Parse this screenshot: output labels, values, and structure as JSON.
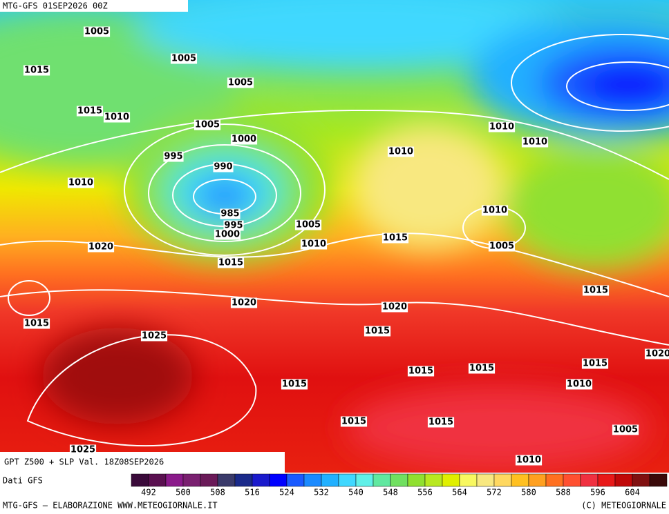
{
  "header": {
    "run": "MTG-GFS 01SEP2026 00Z"
  },
  "map": {
    "title": "GPT Z500 + SLP Val. 18Z08SEP2026",
    "isobar_labels": [
      "1005",
      "1005",
      "1015",
      "1005",
      "1015",
      "1010",
      "1005",
      "1000",
      "995",
      "990",
      "1010",
      "985",
      "995",
      "1000",
      "1005",
      "1010",
      "1010",
      "1010",
      "1010",
      "1010",
      "1005",
      "1015",
      "1020",
      "1015",
      "1020",
      "1015",
      "1015",
      "1020",
      "1015",
      "1025",
      "1015",
      "1015",
      "1015",
      "1020",
      "1010",
      "1015",
      "1015",
      "1015",
      "1005",
      "1010",
      "1025"
    ]
  },
  "legend": {
    "source": "Dati GFS",
    "colors": [
      "#3a0a3a",
      "#5a1050",
      "#8a1a8a",
      "#7a2070",
      "#6a1a58",
      "#3a3a6a",
      "#1a2a8a",
      "#1a1acc",
      "#0000ff",
      "#1a5aff",
      "#1a8aff",
      "#20b0ff",
      "#40d8ff",
      "#60f0e8",
      "#60e8a0",
      "#70e060",
      "#90e030",
      "#b8e820",
      "#e0f000",
      "#f8f860",
      "#f8e880",
      "#ffd860",
      "#ffc020",
      "#ffa020",
      "#ff7020",
      "#ff5030",
      "#f03040",
      "#e81818",
      "#c00808",
      "#801010",
      "#3a0a0a"
    ],
    "ticks": [
      492,
      500,
      508,
      516,
      524,
      532,
      540,
      548,
      556,
      564,
      572,
      580,
      588,
      596,
      604
    ]
  },
  "footer": {
    "credit": "MTG-GFS — ELABORAZIONE WWW.METEOGIORNALE.IT",
    "copyright": "(C) METEOGIORNALE"
  }
}
